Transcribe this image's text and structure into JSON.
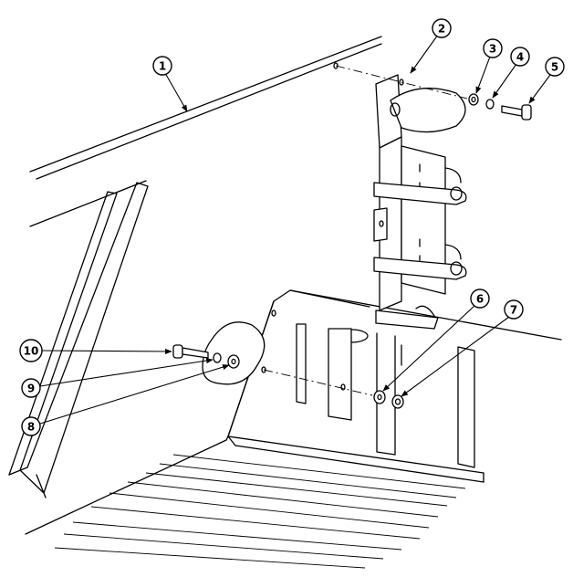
{
  "callouts": [
    {
      "id": "1",
      "label": "1"
    },
    {
      "id": "2",
      "label": "2"
    },
    {
      "id": "3",
      "label": "3"
    },
    {
      "id": "4",
      "label": "4"
    },
    {
      "id": "5",
      "label": "5"
    },
    {
      "id": "6",
      "label": "6"
    },
    {
      "id": "7",
      "label": "7"
    },
    {
      "id": "8",
      "label": "8"
    },
    {
      "id": "9",
      "label": "9"
    },
    {
      "id": "10",
      "label": "10"
    }
  ]
}
